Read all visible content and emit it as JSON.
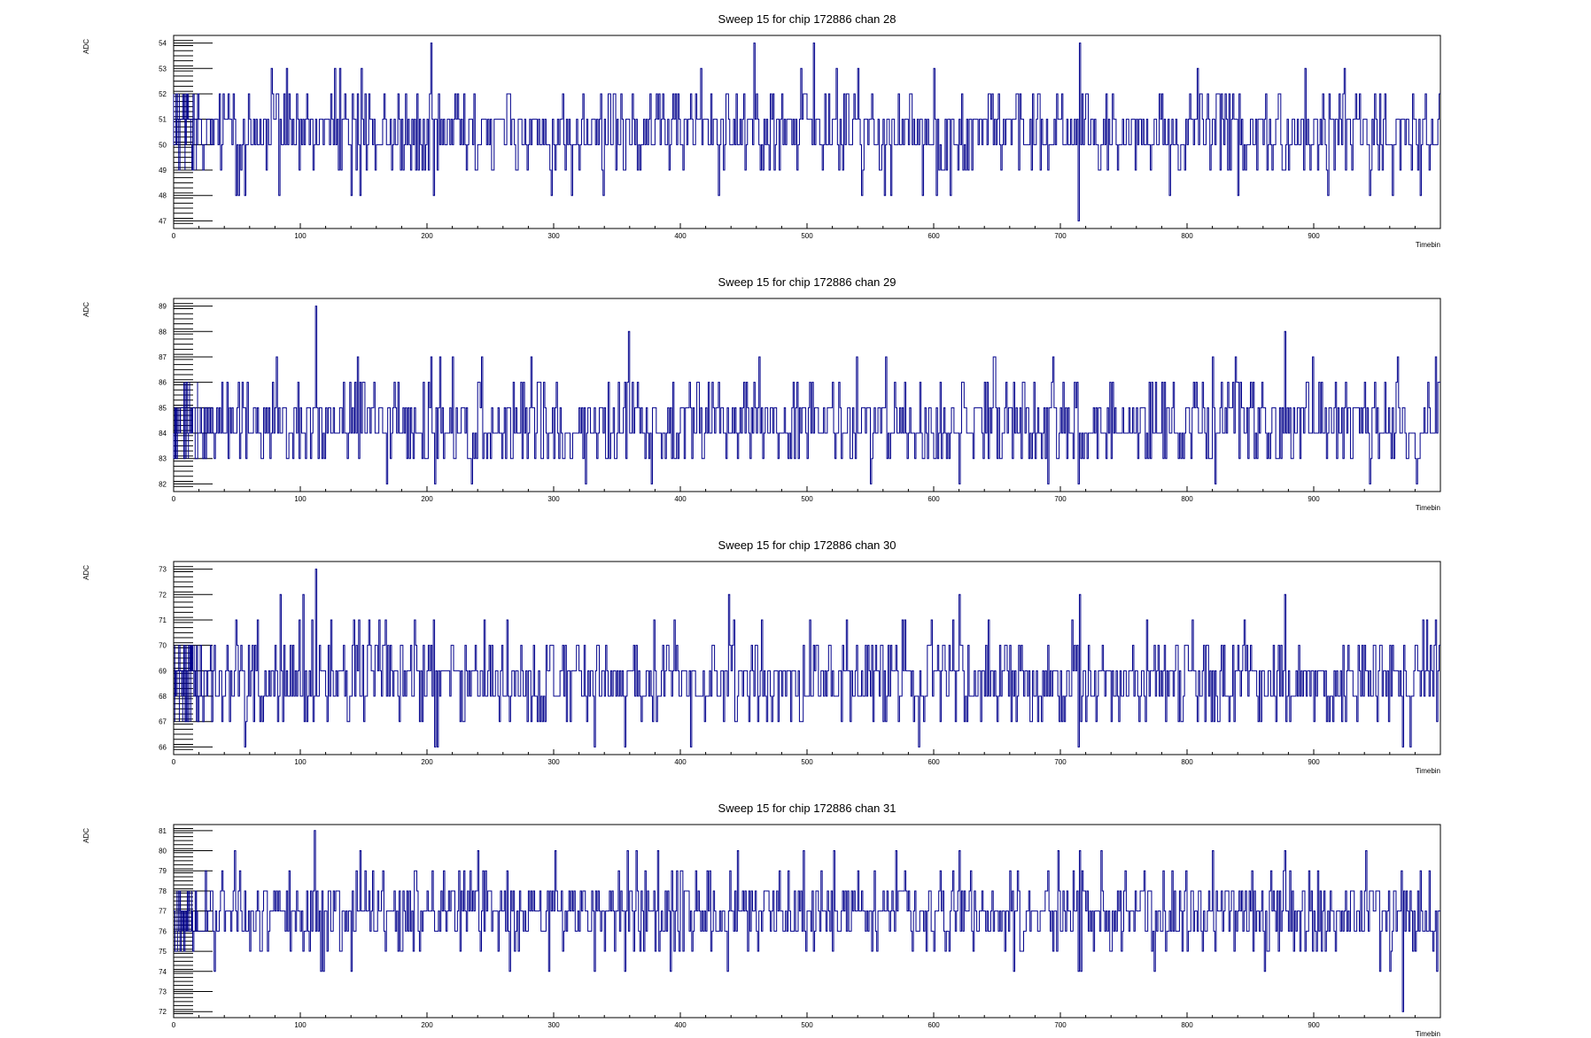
{
  "style": {
    "line_color": "#00008b",
    "frame_color": "#000000",
    "background": "#ffffff"
  },
  "chart_data": [
    {
      "type": "line",
      "title": "Sweep 15 for chip 172886 chan 28",
      "xlabel": "Timebin",
      "ylabel": "ADC",
      "xlim": [
        0,
        1000
      ],
      "ylim": [
        46.7,
        54.3
      ],
      "xticks": [
        0,
        100,
        200,
        300,
        400,
        500,
        600,
        700,
        800,
        900
      ],
      "yticks": [
        47,
        48,
        49,
        50,
        51,
        52,
        53,
        54
      ],
      "baseline": 50.6,
      "spread": 0.85,
      "seed": 2801,
      "spikes": [
        [
          203,
          54
        ],
        [
          205,
          48
        ],
        [
          458,
          54
        ],
        [
          505,
          54
        ],
        [
          715,
          54
        ],
        [
          714,
          47
        ],
        [
          56,
          48
        ],
        [
          83,
          48
        ],
        [
          140,
          48
        ],
        [
          543,
          48
        ],
        [
          566,
          48
        ],
        [
          962,
          48
        ],
        [
          840,
          48
        ],
        [
          984,
          48
        ]
      ],
      "grid": false
    },
    {
      "type": "line",
      "title": "Sweep 15 for chip 172886 chan 29",
      "xlabel": "Timebin",
      "ylabel": "ADC",
      "xlim": [
        0,
        1000
      ],
      "ylim": [
        81.7,
        89.3
      ],
      "xticks": [
        0,
        100,
        200,
        300,
        400,
        500,
        600,
        700,
        800,
        900
      ],
      "yticks": [
        82,
        83,
        84,
        85,
        86,
        87,
        88,
        89
      ],
      "baseline": 84.4,
      "spread": 0.95,
      "seed": 2902,
      "spikes": [
        [
          112,
          89
        ],
        [
          359,
          88
        ],
        [
          877,
          88
        ],
        [
          220,
          87
        ],
        [
          243,
          87
        ],
        [
          462,
          87
        ],
        [
          620,
          87
        ],
        [
          648,
          87
        ],
        [
          694,
          87
        ],
        [
          714,
          87
        ],
        [
          820,
          87
        ],
        [
          838,
          87
        ],
        [
          996,
          87
        ],
        [
          168,
          82
        ],
        [
          206,
          82
        ],
        [
          235,
          82
        ],
        [
          325,
          82
        ],
        [
          377,
          82
        ],
        [
          550,
          82
        ],
        [
          620,
          82
        ],
        [
          690,
          82
        ],
        [
          714,
          82
        ],
        [
          822,
          82
        ],
        [
          944,
          82
        ],
        [
          981,
          82
        ]
      ],
      "grid": false
    },
    {
      "type": "line",
      "title": "Sweep 15 for chip 172886 chan 30",
      "xlabel": "Timebin",
      "ylabel": "ADC",
      "xlim": [
        0,
        1000
      ],
      "ylim": [
        65.7,
        73.3
      ],
      "xticks": [
        0,
        100,
        200,
        300,
        400,
        500,
        600,
        700,
        800,
        900
      ],
      "yticks": [
        66,
        67,
        68,
        69,
        70,
        71,
        72,
        73
      ],
      "baseline": 68.7,
      "spread": 0.95,
      "seed": 3003,
      "spikes": [
        [
          112,
          73
        ],
        [
          102,
          72
        ],
        [
          438,
          72
        ],
        [
          620,
          72
        ],
        [
          715,
          72
        ],
        [
          877,
          72
        ],
        [
          56,
          66
        ],
        [
          206,
          66
        ],
        [
          208,
          66
        ],
        [
          332,
          66
        ],
        [
          356,
          66
        ],
        [
          408,
          66
        ],
        [
          588,
          66
        ],
        [
          714,
          66
        ],
        [
          970,
          66
        ],
        [
          976,
          66
        ]
      ],
      "grid": false
    },
    {
      "type": "line",
      "title": "Sweep 15 for chip 172886 chan 31",
      "xlabel": "Timebin",
      "ylabel": "ADC",
      "xlim": [
        0,
        1000
      ],
      "ylim": [
        71.7,
        81.3
      ],
      "xticks": [
        0,
        100,
        200,
        300,
        400,
        500,
        600,
        700,
        800,
        900
      ],
      "yticks": [
        72,
        73,
        74,
        75,
        76,
        77,
        78,
        79,
        80,
        81
      ],
      "baseline": 76.9,
      "spread": 1.05,
      "seed": 3104,
      "spikes": [
        [
          111,
          81
        ],
        [
          240,
          80
        ],
        [
          358,
          80
        ],
        [
          445,
          80
        ],
        [
          570,
          80
        ],
        [
          620,
          80
        ],
        [
          715,
          80
        ],
        [
          877,
          80
        ],
        [
          970,
          72
        ],
        [
          140,
          74
        ],
        [
          332,
          74
        ],
        [
          356,
          74
        ],
        [
          437,
          74
        ],
        [
          714,
          74
        ],
        [
          997,
          74
        ]
      ],
      "grid": false
    }
  ]
}
